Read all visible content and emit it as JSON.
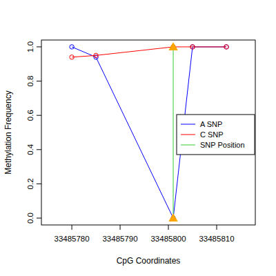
{
  "chart_data": {
    "type": "line",
    "x_label": "CpG Coordinates",
    "y_label": "Methylation Frequency",
    "x": [
      33485780,
      33485785,
      33485801,
      33485805,
      33485812
    ],
    "series": [
      {
        "name": "A SNP",
        "color": "#0000ff",
        "marker": "circle",
        "values": [
          1.0,
          0.94,
          0.0,
          1.0,
          1.0
        ]
      },
      {
        "name": "C SNP",
        "color": "#ff0000",
        "marker": "circle",
        "values": [
          0.94,
          0.95,
          1.0,
          1.0,
          1.0
        ]
      },
      {
        "name": "SNP Position",
        "color": "#33cc33",
        "type": "vline",
        "marker": "triangle",
        "x": [
          33485801,
          33485801
        ],
        "values": [
          0.0,
          1.0
        ]
      }
    ],
    "xlim": [
      33485773.7,
      33485818.0
    ],
    "ylim": [
      -0.04,
      1.04
    ],
    "xticks": [
      33485780,
      33485790,
      33485800,
      33485810
    ],
    "yticks": [
      {
        "value": 0,
        "label": "0.0"
      },
      {
        "value": 0.2,
        "label": "0.2"
      },
      {
        "value": 0.4,
        "label": "0.4"
      },
      {
        "value": 0.6,
        "label": "0.6"
      },
      {
        "value": 0.8,
        "label": "0.8"
      },
      {
        "value": 1.0,
        "label": "1.0"
      }
    ],
    "grid": false,
    "legend": "right"
  }
}
